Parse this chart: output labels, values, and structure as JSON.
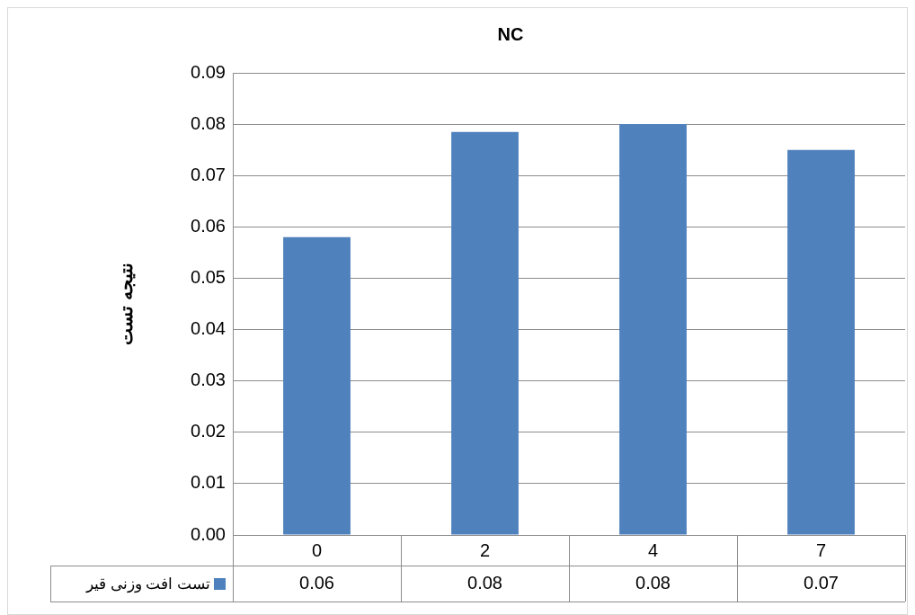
{
  "chart_data": {
    "type": "bar",
    "title": "NC",
    "ylabel": "نتیجه تست",
    "categories": [
      "0",
      "2",
      "4",
      "7"
    ],
    "series": [
      {
        "name": "تست افت وزنی قیر",
        "color": "#4f81bd",
        "values": [
          0.058,
          0.0785,
          0.08,
          0.075
        ],
        "value_labels": [
          "0.06",
          "0.08",
          "0.08",
          "0.07"
        ]
      }
    ],
    "ylim": [
      0,
      0.09
    ],
    "yticks": [
      {
        "value": 0,
        "label": "0.00"
      },
      {
        "value": 0.01,
        "label": "0.01"
      },
      {
        "value": 0.02,
        "label": "0.02"
      },
      {
        "value": 0.03,
        "label": "0.03"
      },
      {
        "value": 0.04,
        "label": "0.04"
      },
      {
        "value": 0.05,
        "label": "0.05"
      },
      {
        "value": 0.06,
        "label": "0.06"
      },
      {
        "value": 0.07,
        "label": "0.07"
      },
      {
        "value": 0.08,
        "label": "0.08"
      },
      {
        "value": 0.09,
        "label": "0.09"
      }
    ],
    "grid": "y",
    "legend": "bottom"
  }
}
